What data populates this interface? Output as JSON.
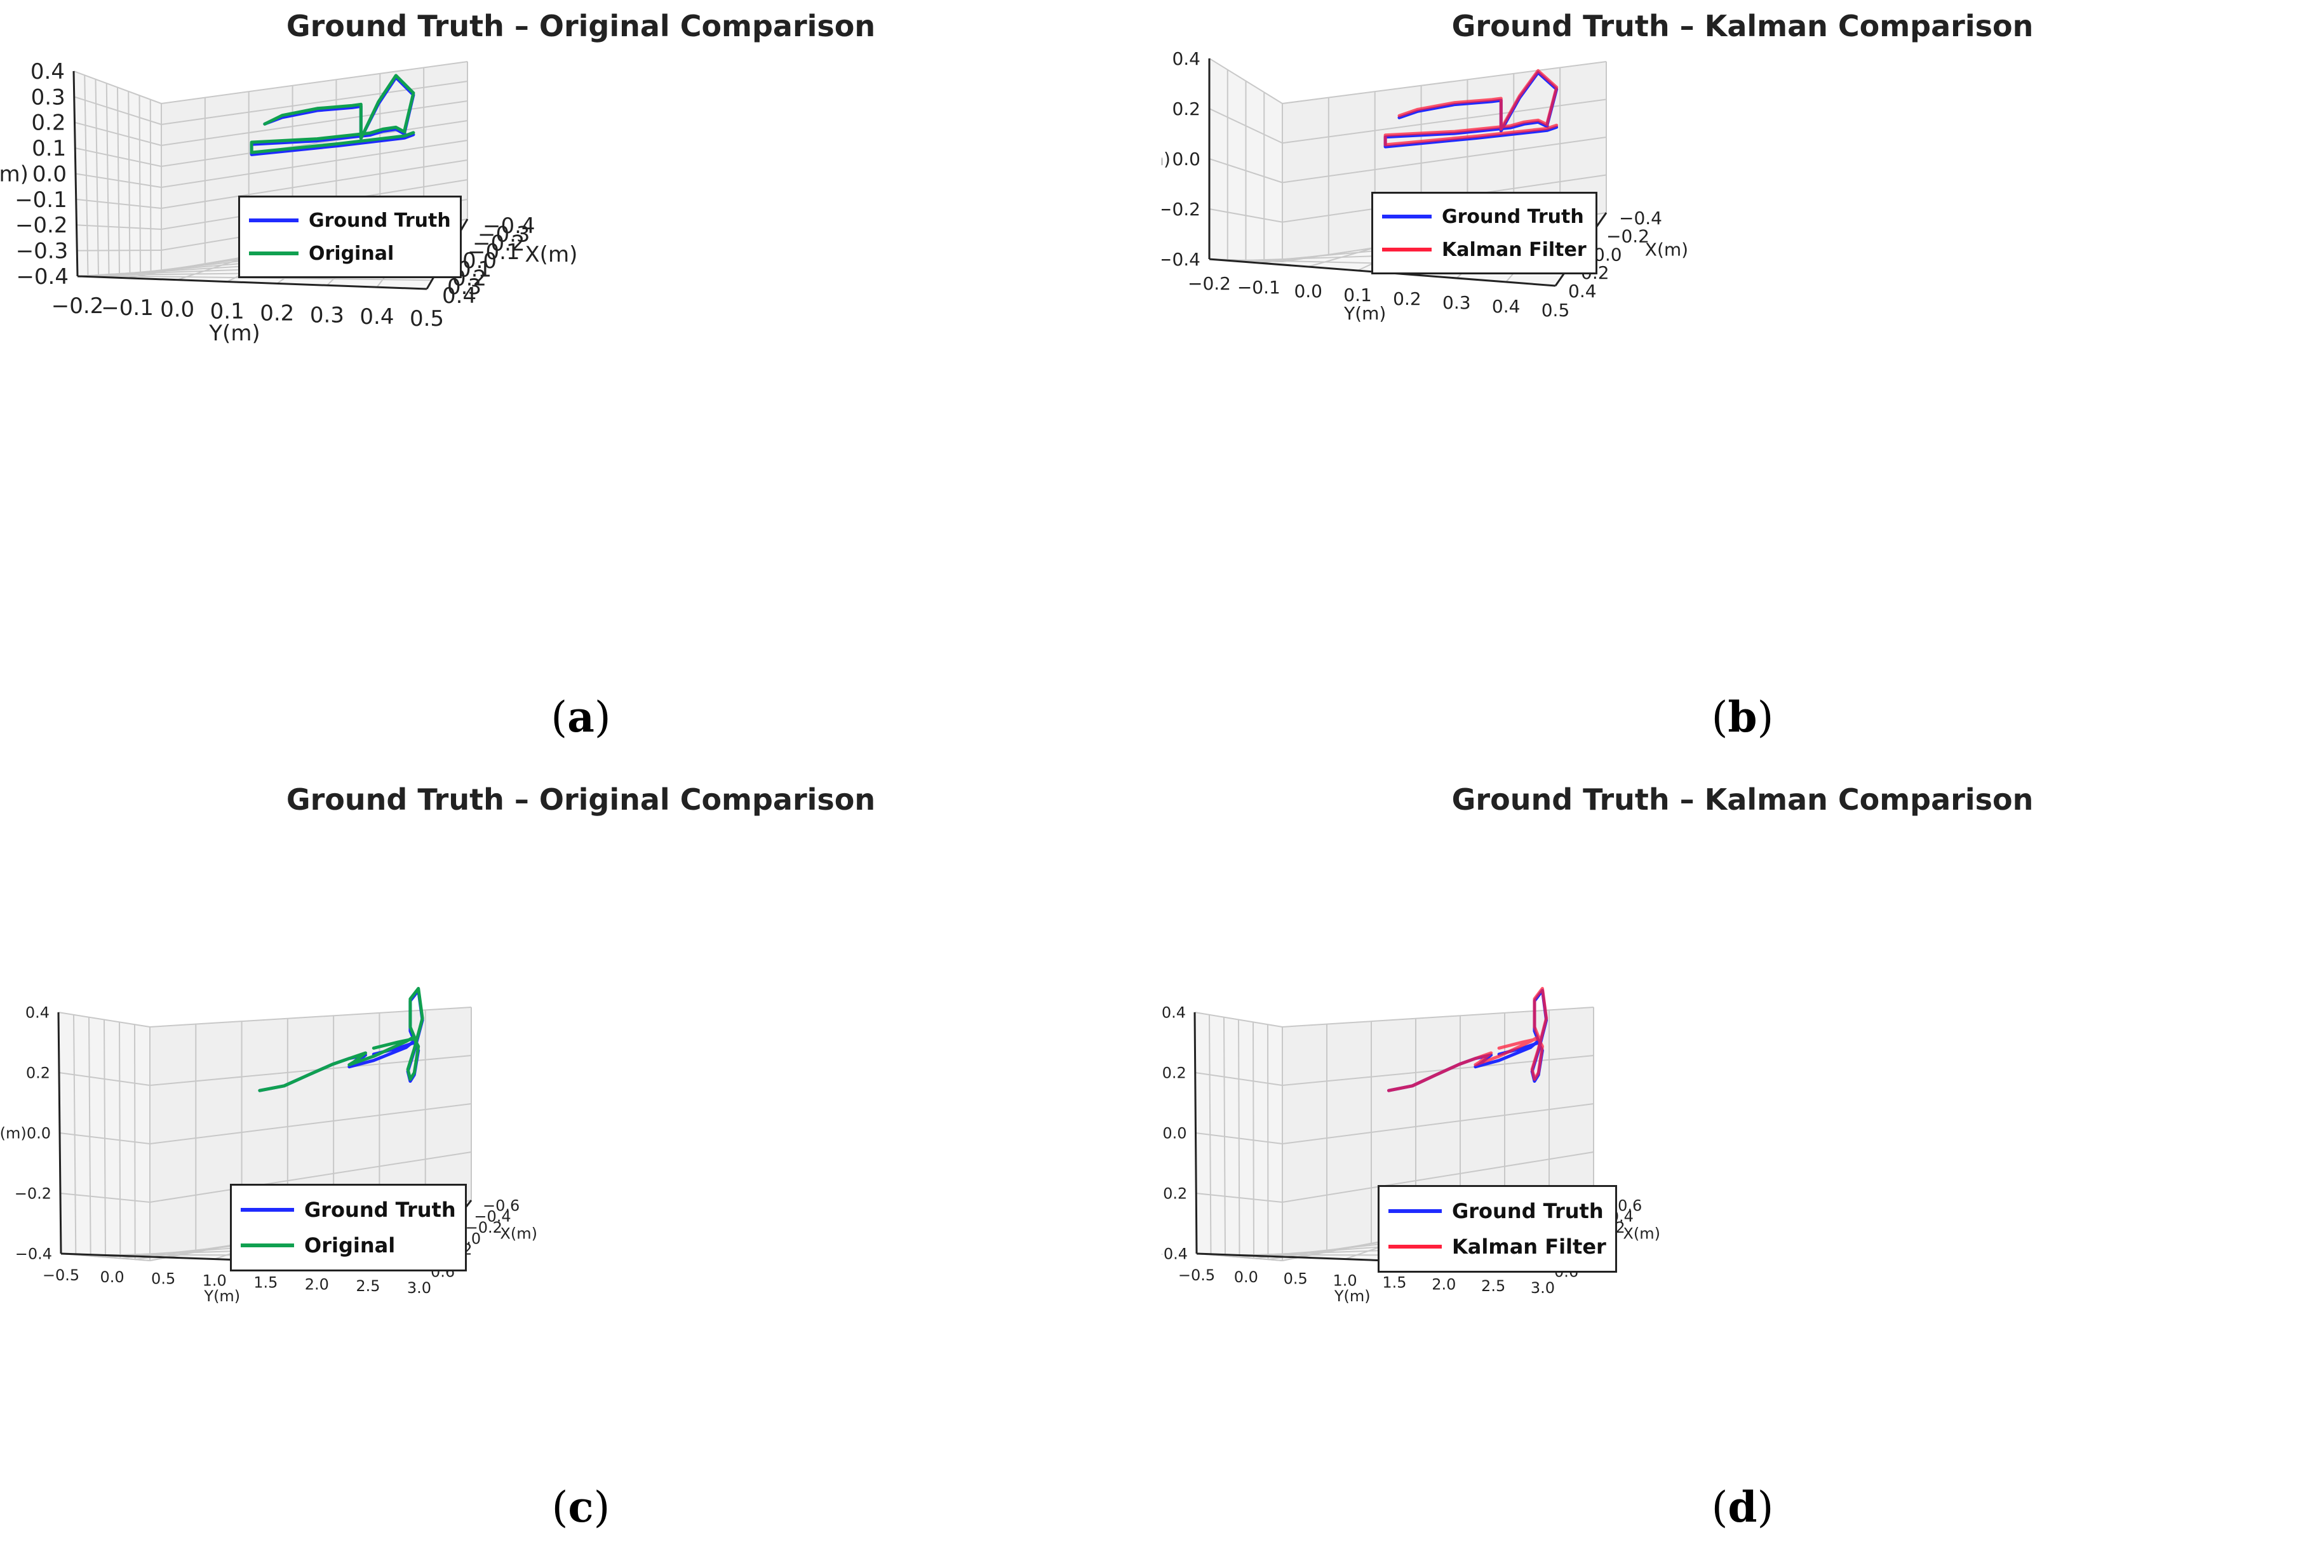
{
  "colors": {
    "ground_truth": "#1f2bff",
    "original": "#10a050",
    "kalman": "#ff1f3c",
    "pane": "#efefef",
    "grid": "#c8c8c8"
  },
  "panels": [
    {
      "id": "a",
      "caption": "a",
      "title": "Ground Truth – Original Comparison",
      "legend": [
        {
          "label": "Ground Truth",
          "color_key": "ground_truth"
        },
        {
          "label": "Original",
          "color_key": "original"
        }
      ],
      "zlabel": "Z(m)",
      "ylabel": "Y(m)",
      "xlabel": "X(m)",
      "z_ticks": [
        "0.4",
        "0.3",
        "0.2",
        "0.1",
        "0.0",
        "−0.1",
        "−0.2",
        "−0.3",
        "−0.4"
      ],
      "y_ticks": [
        "−0.2",
        "−0.1",
        "0.0",
        "0.1",
        "0.2",
        "0.3",
        "0.4",
        "0.5"
      ],
      "x_ticks": [
        "−0.4",
        "−0.3",
        "−0.2",
        "−0.1",
        "0.0",
        "0.1",
        "0.2",
        "0.3",
        "0.4"
      ]
    },
    {
      "id": "b",
      "caption": "b",
      "title": "Ground Truth – Kalman Comparison",
      "legend": [
        {
          "label": "Ground Truth",
          "color_key": "ground_truth"
        },
        {
          "label": "Kalman Filter",
          "color_key": "kalman"
        }
      ],
      "zlabel": "Z(m)",
      "ylabel": "Y(m)",
      "xlabel": "X(m)",
      "z_ticks": [
        "0.4",
        "0.2",
        "0.0",
        "−0.2",
        "−0.4"
      ],
      "y_ticks": [
        "−0.2",
        "−0.1",
        "0.0",
        "0.1",
        "0.2",
        "0.3",
        "0.4",
        "0.5"
      ],
      "x_ticks": [
        "−0.4",
        "−0.2",
        "0.0",
        "0.2",
        "0.4"
      ]
    },
    {
      "id": "c",
      "caption": "c",
      "title": "Ground Truth – Original Comparison",
      "legend": [
        {
          "label": "Ground Truth",
          "color_key": "ground_truth"
        },
        {
          "label": "Original",
          "color_key": "original"
        }
      ],
      "zlabel": "Z(m)",
      "ylabel": "Y(m)",
      "xlabel": "X(m)",
      "z_ticks": [
        "0.4",
        "0.2",
        "0.0",
        "−0.2",
        "−0.4"
      ],
      "y_ticks": [
        "−0.5",
        "0.0",
        "0.5",
        "1.0",
        "1.5",
        "2.0",
        "2.5",
        "3.0"
      ],
      "x_ticks": [
        "−0.6",
        "−0.4",
        "−0.2",
        "0.0",
        "0.2",
        "0.4",
        "0.6"
      ]
    },
    {
      "id": "d",
      "caption": "d",
      "title": "Ground Truth – Kalman Comparison",
      "legend": [
        {
          "label": "Ground Truth",
          "color_key": "ground_truth"
        },
        {
          "label": "Kalman Filter",
          "color_key": "kalman"
        }
      ],
      "zlabel": "Z(m)",
      "ylabel": "Y(m)",
      "xlabel": "X(m)",
      "z_ticks": [
        "0.4",
        "0.2",
        "0.0",
        "−0.2",
        "−0.4"
      ],
      "y_ticks": [
        "−0.5",
        "0.0",
        "0.5",
        "1.0",
        "1.5",
        "2.0",
        "2.5",
        "3.0"
      ],
      "x_ticks": [
        "−0.6",
        "−0.4",
        "−0.2",
        "0.0",
        "0.2",
        "0.4",
        "0.6"
      ]
    }
  ],
  "chart_data": [
    {
      "type": "line3d",
      "title": "Ground Truth – Original Comparison",
      "xlabel": "X(m)",
      "ylabel": "Y(m)",
      "zlabel": "Z(m)",
      "ylim": [
        -0.2,
        0.5
      ],
      "xlim": [
        -0.4,
        0.4
      ],
      "zlim": [
        -0.4,
        0.4
      ],
      "series": [
        {
          "name": "Ground Truth",
          "y": [
            0.08,
            0.12,
            0.2,
            0.28,
            0.3,
            0.3,
            0.34,
            0.38,
            0.42,
            0.4,
            0.4,
            0.38,
            0.35,
            0.32,
            0.2,
            0.05,
            0.05,
            0.25,
            0.4,
            0.42
          ],
          "z": [
            0.28,
            0.3,
            0.31,
            0.3,
            0.3,
            0.14,
            0.3,
            0.42,
            0.32,
            0.14,
            0.13,
            0.16,
            0.16,
            0.15,
            0.16,
            0.19,
            0.14,
            0.12,
            0.11,
            0.12
          ]
        },
        {
          "name": "Original",
          "y": [
            0.08,
            0.12,
            0.2,
            0.28,
            0.3,
            0.3,
            0.34,
            0.38,
            0.42,
            0.4,
            0.4,
            0.38,
            0.35,
            0.32,
            0.2,
            0.05,
            0.05,
            0.25,
            0.4,
            0.42
          ],
          "z": [
            0.28,
            0.31,
            0.32,
            0.31,
            0.31,
            0.14,
            0.31,
            0.43,
            0.33,
            0.15,
            0.14,
            0.17,
            0.17,
            0.16,
            0.17,
            0.2,
            0.15,
            0.13,
            0.12,
            0.13
          ]
        }
      ]
    },
    {
      "type": "line3d",
      "title": "Ground Truth – Kalman Comparison",
      "xlabel": "X(m)",
      "ylabel": "Y(m)",
      "zlabel": "Z(m)",
      "ylim": [
        -0.2,
        0.5
      ],
      "xlim": [
        -0.4,
        0.4
      ],
      "zlim": [
        -0.4,
        0.4
      ],
      "series": [
        {
          "name": "Ground Truth",
          "y": [
            0.08,
            0.12,
            0.2,
            0.28,
            0.3,
            0.3,
            0.34,
            0.38,
            0.42,
            0.4,
            0.4,
            0.38,
            0.35,
            0.32,
            0.2,
            0.05,
            0.05,
            0.25,
            0.4,
            0.42
          ],
          "z": [
            0.28,
            0.3,
            0.31,
            0.3,
            0.3,
            0.14,
            0.3,
            0.42,
            0.32,
            0.14,
            0.13,
            0.16,
            0.16,
            0.15,
            0.16,
            0.19,
            0.14,
            0.12,
            0.11,
            0.12
          ]
        },
        {
          "name": "Kalman Filter",
          "y": [
            0.08,
            0.12,
            0.2,
            0.28,
            0.3,
            0.3,
            0.34,
            0.38,
            0.42,
            0.4,
            0.4,
            0.38,
            0.35,
            0.32,
            0.2,
            0.05,
            0.05,
            0.25,
            0.4,
            0.42
          ],
          "z": [
            0.29,
            0.31,
            0.32,
            0.31,
            0.31,
            0.15,
            0.31,
            0.43,
            0.33,
            0.15,
            0.14,
            0.17,
            0.17,
            0.16,
            0.17,
            0.2,
            0.15,
            0.13,
            0.12,
            0.13
          ]
        }
      ]
    },
    {
      "type": "line3d",
      "title": "Ground Truth – Original Comparison",
      "xlabel": "X(m)",
      "ylabel": "Y(m)",
      "zlabel": "Z(m)",
      "ylim": [
        -0.75,
        3.2
      ],
      "xlim": [
        -0.6,
        0.6
      ],
      "zlim": [
        -0.5,
        0.5
      ],
      "series": [
        {
          "name": "Ground Truth",
          "y": [
            0.6,
            0.9,
            1.2,
            1.5,
            1.7,
            1.9,
            1.75,
            1.7,
            2.0,
            2.4,
            2.5,
            2.45,
            2.45,
            2.55,
            2.6,
            2.5,
            2.42,
            2.45,
            2.5,
            2.55,
            2.5,
            2.3,
            2.0
          ],
          "z": [
            0.18,
            0.19,
            0.23,
            0.27,
            0.29,
            0.3,
            0.26,
            0.25,
            0.27,
            0.32,
            0.35,
            0.4,
            0.55,
            0.6,
            0.45,
            0.3,
            0.2,
            0.15,
            0.18,
            0.3,
            0.34,
            0.32,
            0.3
          ]
        },
        {
          "name": "Original",
          "y": [
            0.6,
            0.9,
            1.2,
            1.5,
            1.7,
            1.9,
            1.75,
            1.7,
            2.0,
            2.4,
            2.5,
            2.45,
            2.45,
            2.55,
            2.6,
            2.5,
            2.42,
            2.45,
            2.5,
            2.55,
            2.5,
            2.3,
            2.0
          ],
          "z": [
            0.18,
            0.19,
            0.23,
            0.27,
            0.29,
            0.31,
            0.27,
            0.26,
            0.29,
            0.35,
            0.37,
            0.42,
            0.56,
            0.61,
            0.46,
            0.31,
            0.21,
            0.16,
            0.19,
            0.32,
            0.36,
            0.35,
            0.33
          ]
        }
      ]
    },
    {
      "type": "line3d",
      "title": "Ground Truth – Kalman Comparison",
      "xlabel": "X(m)",
      "ylabel": "Y(m)",
      "zlabel": "Z(m)",
      "ylim": [
        -0.75,
        3.2
      ],
      "xlim": [
        -0.6,
        0.6
      ],
      "zlim": [
        -0.5,
        0.5
      ],
      "series": [
        {
          "name": "Ground Truth",
          "y": [
            0.6,
            0.9,
            1.2,
            1.5,
            1.7,
            1.9,
            1.75,
            1.7,
            2.0,
            2.4,
            2.5,
            2.45,
            2.45,
            2.55,
            2.6,
            2.5,
            2.42,
            2.45,
            2.5,
            2.55,
            2.5,
            2.3,
            2.0
          ],
          "z": [
            0.18,
            0.19,
            0.23,
            0.27,
            0.29,
            0.3,
            0.26,
            0.25,
            0.27,
            0.32,
            0.35,
            0.4,
            0.55,
            0.6,
            0.45,
            0.3,
            0.2,
            0.15,
            0.18,
            0.3,
            0.34,
            0.32,
            0.3
          ]
        },
        {
          "name": "Kalman Filter",
          "y": [
            0.6,
            0.9,
            1.2,
            1.5,
            1.7,
            1.9,
            1.75,
            1.7,
            2.0,
            2.4,
            2.5,
            2.45,
            2.45,
            2.55,
            2.6,
            2.5,
            2.42,
            2.45,
            2.5,
            2.55,
            2.5,
            2.3,
            2.0
          ],
          "z": [
            0.18,
            0.19,
            0.23,
            0.27,
            0.29,
            0.31,
            0.27,
            0.26,
            0.29,
            0.35,
            0.37,
            0.42,
            0.56,
            0.61,
            0.46,
            0.31,
            0.21,
            0.16,
            0.19,
            0.32,
            0.36,
            0.35,
            0.33
          ]
        }
      ]
    }
  ]
}
